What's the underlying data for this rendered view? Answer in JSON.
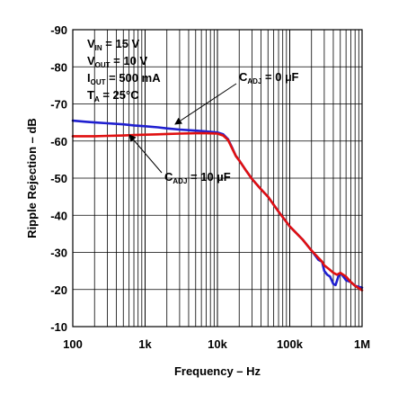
{
  "chart_data": {
    "type": "line",
    "xlabel": "Frequency – Hz",
    "ylabel": "Ripple Rejection – dB",
    "x_scale": "log",
    "xlim": [
      100,
      1000000
    ],
    "ylim": [
      -10,
      -90
    ],
    "grid": true,
    "x_tick_labels": [
      "100",
      "1k",
      "10k",
      "100k",
      "1M"
    ],
    "x_tick_values": [
      100,
      1000,
      10000,
      100000,
      1000000
    ],
    "y_tick_values": [
      -90,
      -80,
      -70,
      -60,
      -50,
      -40,
      -30,
      -20,
      -10
    ],
    "y_tick_labels": [
      "-90",
      "-80",
      "-70",
      "-60",
      "-50",
      "-40",
      "-30",
      "-20",
      "-10"
    ],
    "conditions": [
      {
        "main": "V",
        "sub": "IN",
        "rest": " = 15 V"
      },
      {
        "main": "V",
        "sub": "OUT",
        "rest": " = 10 V"
      },
      {
        "main": "I",
        "sub": "OUT",
        "rest": " = 500 mA"
      },
      {
        "main": "T",
        "sub": "A",
        "rest": " = 25°C"
      }
    ],
    "annotations": [
      {
        "main": "C",
        "sub": "ADJ",
        "rest": " = 0 µF",
        "series": 0
      },
      {
        "main": "C",
        "sub": "ADJ",
        "rest": " = 10 µF",
        "series": 1
      }
    ],
    "series": [
      {
        "color": "#1f1fd0",
        "x": [
          100,
          150,
          200,
          300,
          500,
          700,
          1000,
          1500,
          2000,
          3000,
          5000,
          7000,
          10000,
          12000,
          14000,
          16000,
          18000,
          20000,
          25000,
          30000,
          40000,
          50000,
          70000,
          100000,
          150000,
          200000,
          250000,
          280000,
          300000,
          330000,
          360000,
          400000,
          430000,
          470000,
          500000,
          550000,
          600000,
          700000,
          800000,
          1000000
        ],
        "y": [
          -65.5,
          -65.2,
          -65.0,
          -64.8,
          -64.5,
          -64.2,
          -64.0,
          -63.7,
          -63.4,
          -63.1,
          -62.8,
          -62.6,
          -62.3,
          -61.8,
          -60.5,
          -58.2,
          -56.0,
          -54.8,
          -52.0,
          -49.8,
          -47.0,
          -45.0,
          -41.0,
          -37.0,
          -33.5,
          -30.5,
          -28.0,
          -27.5,
          -25.0,
          -24.0,
          -23.5,
          -21.5,
          -21.2,
          -23.5,
          -24.5,
          -23.5,
          -22.5,
          -22.0,
          -21.0,
          -20.5
        ]
      },
      {
        "color": "#e01010",
        "x": [
          100,
          150,
          200,
          300,
          500,
          700,
          1000,
          1500,
          2000,
          3000,
          5000,
          7000,
          10000,
          12000,
          14000,
          16000,
          18000,
          20000,
          25000,
          30000,
          40000,
          50000,
          70000,
          100000,
          150000,
          200000,
          250000,
          280000,
          300000,
          350000,
          400000,
          450000,
          500000,
          600000,
          700000,
          800000,
          1000000
        ],
        "y": [
          -61.3,
          -61.3,
          -61.3,
          -61.4,
          -61.5,
          -61.6,
          -61.7,
          -61.8,
          -61.9,
          -62.0,
          -62.1,
          -62.1,
          -62.0,
          -61.5,
          -60.3,
          -58.0,
          -56.0,
          -54.8,
          -52.0,
          -49.8,
          -47.0,
          -45.0,
          -41.0,
          -37.0,
          -33.5,
          -30.5,
          -28.5,
          -27.5,
          -26.5,
          -25.5,
          -24.5,
          -24.0,
          -24.5,
          -23.5,
          -22.0,
          -21.0,
          -19.8
        ]
      }
    ]
  }
}
